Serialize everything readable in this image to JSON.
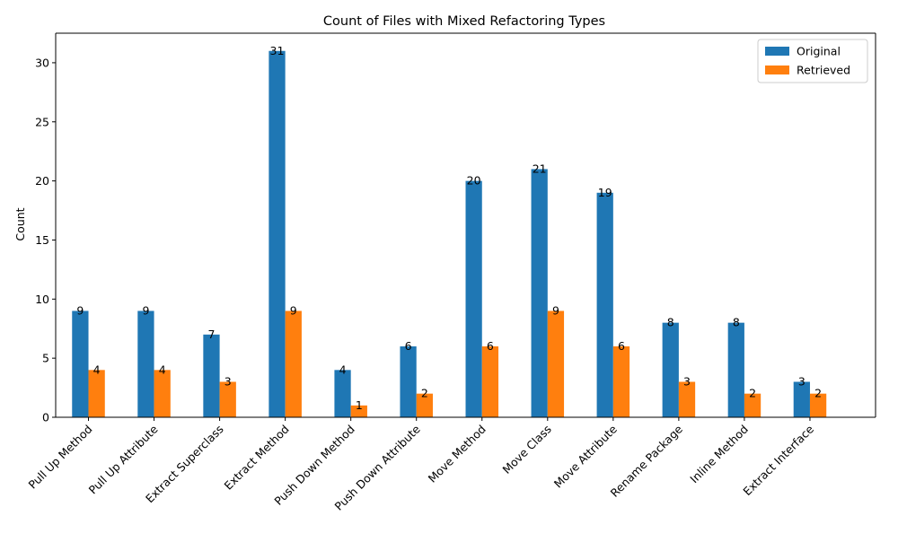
{
  "chart_data": {
    "type": "bar",
    "title": "Count of Files with Mixed Refactoring Types",
    "xlabel": "",
    "ylabel": "Count",
    "categories": [
      "Pull Up Method",
      "Pull Up Attribute",
      "Extract Superclass",
      "Extract Method",
      "Push Down Method",
      "Push Down Attribute",
      "Move Method",
      "Move Class",
      "Move Attribute",
      "Rename Package",
      "Inline Method",
      "Extract Interface"
    ],
    "series": [
      {
        "name": "Original",
        "color": "#1f77b4",
        "values": [
          9,
          9,
          7,
          31,
          4,
          6,
          20,
          21,
          19,
          8,
          8,
          3
        ]
      },
      {
        "name": "Retrieved",
        "color": "#ff7f0e",
        "values": [
          4,
          4,
          3,
          9,
          1,
          2,
          6,
          9,
          6,
          3,
          2,
          2
        ]
      }
    ],
    "ylim": [
      0,
      32.5
    ],
    "yticks": [
      0,
      5,
      10,
      15,
      20,
      25,
      30
    ],
    "legend_position": "top-right",
    "grid": false
  }
}
